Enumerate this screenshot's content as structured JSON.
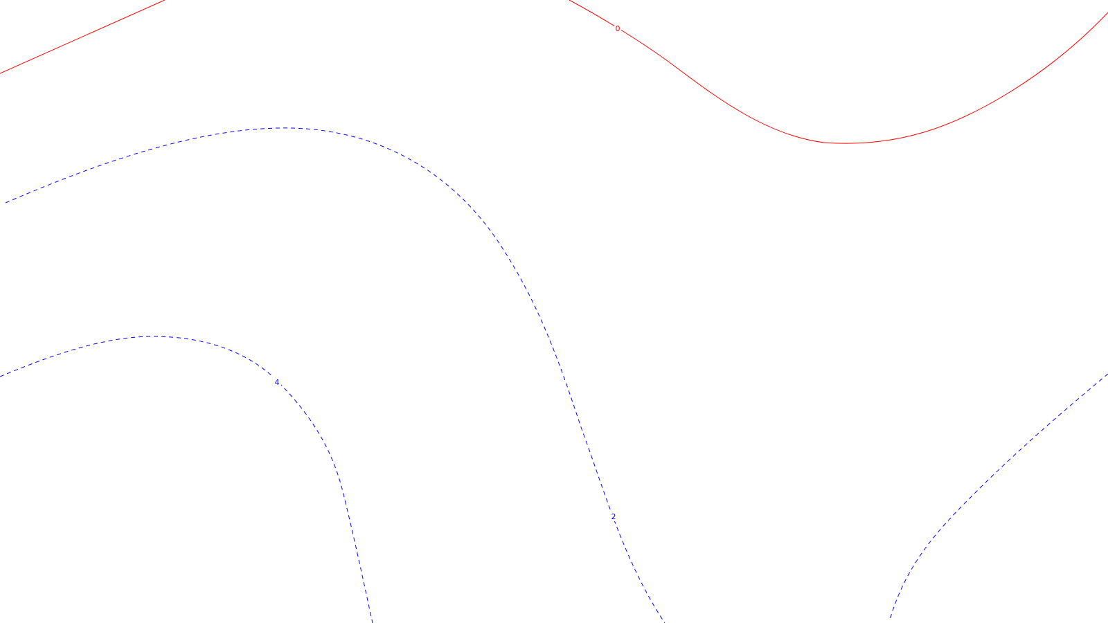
{
  "map": {
    "contours": [
      {
        "id": "zero-west",
        "label": "",
        "style": "solid",
        "color": "#ff0000"
      },
      {
        "id": "zero-east",
        "label": "0",
        "style": "solid",
        "color": "#ff0000"
      },
      {
        "id": "upper-dashed",
        "label": "",
        "style": "dashed",
        "color": "#0000ff"
      },
      {
        "id": "middle-dashed",
        "label": "2",
        "style": "dashed",
        "color": "#0000ff"
      },
      {
        "id": "lower-dashed",
        "label": "4",
        "style": "dashed",
        "color": "#0000ff"
      },
      {
        "id": "southeast-dashed",
        "label": "",
        "style": "dashed",
        "color": "#0000ff"
      }
    ]
  }
}
